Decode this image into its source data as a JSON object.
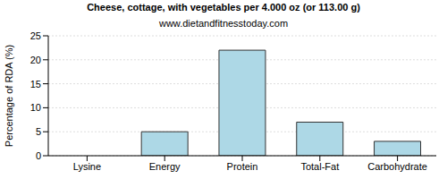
{
  "chart_data": {
    "type": "bar",
    "title": "Cheese, cottage, with vegetables per 4.000 oz (or 113.00 g)",
    "subtitle": "www.dietandfitnesstoday.com",
    "y_label": "Percentage of RDA (%)",
    "categories": [
      "Lysine",
      "Energy",
      "Protein",
      "Total-Fat",
      "Carbohydrate"
    ],
    "values": [
      0,
      5,
      22,
      7,
      3
    ],
    "color": "#add8e6",
    "ylim": [
      0,
      25
    ],
    "yticks": [
      0,
      5,
      10,
      15,
      20,
      25
    ],
    "grid": true
  }
}
